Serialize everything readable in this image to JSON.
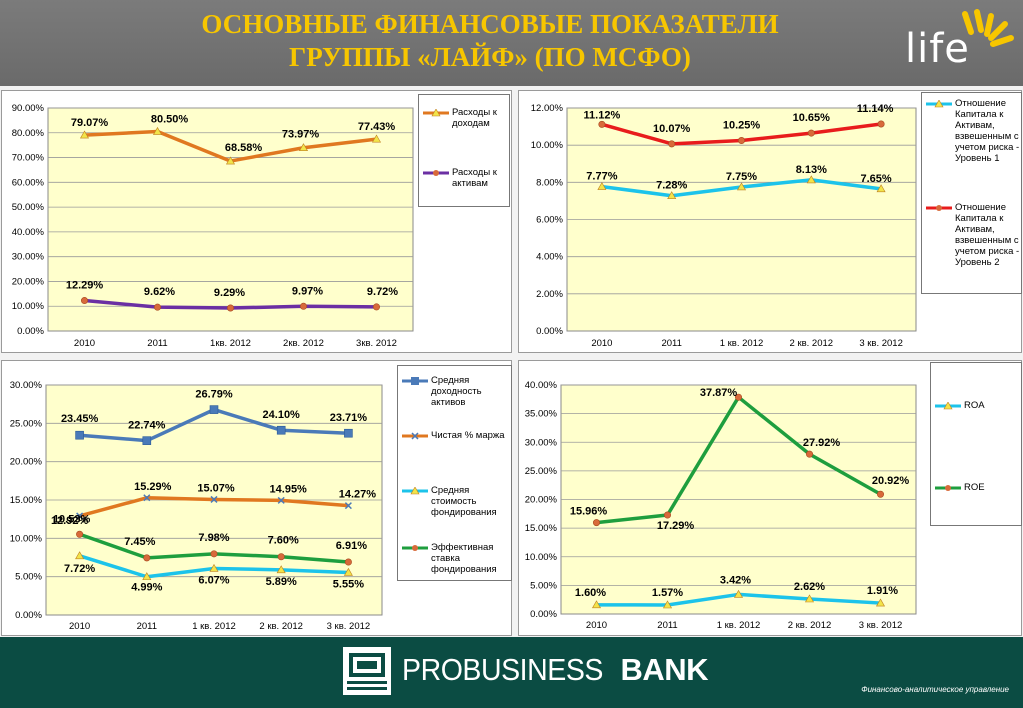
{
  "header": {
    "title_line1": "ОСНОВНЫЕ ФИНАНСОВЫЕ ПОКАЗАТЕЛИ",
    "title_line2": "ГРУППЫ «ЛАЙФ» (ПО МСФО)",
    "logo_text": "life"
  },
  "footer": {
    "bank_name_part1": "PROBUSINESS",
    "bank_name_part2": "BANK",
    "note": "Финансово-аналитическое управление"
  },
  "colors": {
    "plot_bg": "#ffffcc",
    "header_text": "#f7c600",
    "footer_bg": "#0b4c43",
    "orange": "#e07820",
    "purple": "#6b2fa3",
    "cyan": "#1cc3ea",
    "red": "#e81c1c",
    "blue": "#4a7ab8",
    "green": "#1e9e3e"
  },
  "chart_data": [
    {
      "type": "line",
      "categories": [
        "2010",
        "2011",
        "1кв. 2012",
        "2кв. 2012",
        "3кв. 2012"
      ],
      "ylim": [
        0,
        90
      ],
      "yticks": [
        0,
        10,
        20,
        30,
        40,
        50,
        60,
        70,
        80,
        90
      ],
      "tick_labels": [
        "0.00%",
        "10.00%",
        "20.00%",
        "30.00%",
        "40.00%",
        "50.00%",
        "60.00%",
        "70.00%",
        "80.00%",
        "90.00%"
      ],
      "series": [
        {
          "name": "Расходы к доходам",
          "color": "#e07820",
          "marker": "triangle",
          "values": [
            79.07,
            80.5,
            68.58,
            73.97,
            77.43
          ],
          "labels": [
            "79.07%",
            "80.50%",
            "68.58%",
            "73.97%",
            "77.43%"
          ]
        },
        {
          "name": "Расходы к активам",
          "color": "#6b2fa3",
          "marker": "circle",
          "values": [
            12.29,
            9.62,
            9.29,
            9.97,
            9.72
          ],
          "labels": [
            "12.29%",
            "9.62%",
            "9.29%",
            "9.97%",
            "9.72%"
          ]
        }
      ]
    },
    {
      "type": "line",
      "categories": [
        "2010",
        "2011",
        "1 кв. 2012",
        "2 кв. 2012",
        "3 кв. 2012"
      ],
      "ylim": [
        0,
        12
      ],
      "yticks": [
        0,
        2,
        4,
        6,
        8,
        10,
        12
      ],
      "tick_labels": [
        "0.00%",
        "2.00%",
        "4.00%",
        "6.00%",
        "8.00%",
        "10.00%",
        "12.00%"
      ],
      "series": [
        {
          "name": "Отношение Капитала к Активам, взвешенным с учетом риска - Уровень 1",
          "color": "#1cc3ea",
          "marker": "triangle",
          "values": [
            7.77,
            7.28,
            7.75,
            8.13,
            7.65
          ],
          "labels": [
            "7.77%",
            "7.28%",
            "7.75%",
            "8.13%",
            "7.65%"
          ]
        },
        {
          "name": "Отношение Капитала к Активам, взвешенным с учетом риска - Уровень 2",
          "color": "#e81c1c",
          "marker": "circle",
          "values": [
            11.12,
            10.07,
            10.25,
            10.65,
            11.14
          ],
          "labels": [
            "11.12%",
            "10.07%",
            "10.25%",
            "10.65%",
            "11.14%"
          ]
        }
      ]
    },
    {
      "type": "line",
      "categories": [
        "2010",
        "2011",
        "1 кв. 2012",
        "2 кв. 2012",
        "3 кв. 2012"
      ],
      "ylim": [
        0,
        30
      ],
      "yticks": [
        0,
        5,
        10,
        15,
        20,
        25,
        30
      ],
      "tick_labels": [
        "0.00%",
        "5.00%",
        "10.00%",
        "15.00%",
        "20.00%",
        "25.00%",
        "30.00%"
      ],
      "series": [
        {
          "name": "Средняя доходность активов",
          "color": "#4a7ab8",
          "marker": "square",
          "values": [
            23.45,
            22.74,
            26.79,
            24.1,
            23.71
          ],
          "labels": [
            "23.45%",
            "22.74%",
            "26.79%",
            "24.10%",
            "23.71%"
          ]
        },
        {
          "name": "Чистая % маржа",
          "color": "#e07820",
          "marker": "cross",
          "values": [
            12.92,
            15.29,
            15.07,
            14.95,
            14.27
          ],
          "labels": [
            "12.92%",
            "15.29%",
            "15.07%",
            "14.95%",
            "14.27%"
          ]
        },
        {
          "name": "Средняя стоимость фондирования",
          "color": "#1cc3ea",
          "marker": "triangle",
          "values": [
            7.72,
            4.99,
            6.07,
            5.89,
            5.55
          ],
          "labels": [
            "7.72%",
            "4.99%",
            "6.07%",
            "5.89%",
            "5.55%"
          ]
        },
        {
          "name": "Эффективная ставка фондирования",
          "color": "#1e9e3e",
          "marker": "circle",
          "values": [
            10.53,
            7.45,
            7.98,
            7.6,
            6.91
          ],
          "labels": [
            "10.53%",
            "7.45%",
            "7.98%",
            "7.60%",
            "6.91%"
          ]
        }
      ]
    },
    {
      "type": "line",
      "categories": [
        "2010",
        "2011",
        "1 кв. 2012",
        "2 кв. 2012",
        "3 кв. 2012"
      ],
      "ylim": [
        0,
        40
      ],
      "yticks": [
        0,
        5,
        10,
        15,
        20,
        25,
        30,
        35,
        40
      ],
      "tick_labels": [
        "0.00%",
        "5.00%",
        "10.00%",
        "15.00%",
        "20.00%",
        "25.00%",
        "30.00%",
        "35.00%",
        "40.00%"
      ],
      "series": [
        {
          "name": "ROA",
          "color": "#1cc3ea",
          "marker": "triangle",
          "values": [
            1.6,
            1.57,
            3.42,
            2.62,
            1.91
          ],
          "labels": [
            "1.60%",
            "1.57%",
            "3.42%",
            "2.62%",
            "1.91%"
          ]
        },
        {
          "name": "ROE",
          "color": "#1e9e3e",
          "marker": "circle",
          "values": [
            15.96,
            17.29,
            37.87,
            27.92,
            20.92
          ],
          "labels": [
            "15.96%",
            "17.29%",
            "37.87%",
            "27.92%",
            "20.92%"
          ]
        }
      ]
    }
  ]
}
